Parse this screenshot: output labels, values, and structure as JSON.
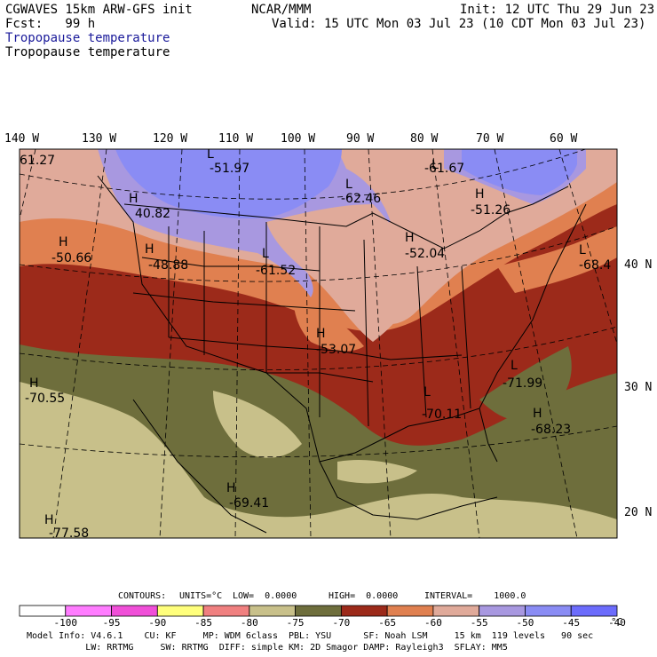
{
  "header": {
    "model": "CGWAVES 15km ARW-GFS init",
    "org": "NCAR/MMM",
    "init": "Init: 12 UTC Thu 29 Jun 23",
    "fcst": "Fcst:   99 h",
    "valid": "Valid: 15 UTC Mon 03 Jul 23 (10 CDT Mon 03 Jul 23)",
    "field_title_blue": "Tropopause temperature",
    "field_title_black": "Tropopause temperature"
  },
  "axes": {
    "longitudes": [
      "140 W",
      "130 W",
      "120 W",
      "110 W",
      "100 W",
      "90 W",
      "80 W",
      "70 W",
      "60 W"
    ],
    "latitudes": [
      "40 N",
      "30 N",
      "20 N"
    ]
  },
  "contour_info": {
    "contours": "CONTOURS:",
    "units": "UNITS=°C",
    "low": "LOW=  0.0000",
    "high": "HIGH=  0.0000",
    "interval": "INTERVAL=    1000.0"
  },
  "colorbar": {
    "colors": [
      "#ffffff",
      "#ff7cff",
      "#f04fd8",
      "#ffff7c",
      "#f08080",
      "#c8c08a",
      "#6e6e3c",
      "#9c2a1a",
      "#e08050",
      "#e0aa9a",
      "#a898e0",
      "#8a8cf4",
      "#6c6cfc"
    ],
    "tick_labels": [
      "-100",
      "-95",
      "-90",
      "-85",
      "-80",
      "-75",
      "-70",
      "-65",
      "-60",
      "-55",
      "-50",
      "-45",
      "-40"
    ],
    "unit_label": "°C"
  },
  "footer": {
    "line1": "Model Info: V4.6.1    CU: KF     MP: WDM 6class  PBL: YSU      SF: Noah LSM     15 km  119 levels   90 sec",
    "line2": "           LW: RRTMG     SW: RRTMG  DIFF: simple KM: 2D Smagor DAMP: Rayleigh3  SFLAY: MM5"
  },
  "map_labels": [
    {
      "name": "low-label-n61-27",
      "text": "61.27"
    },
    {
      "name": "low-marker-n51-97",
      "text": "L"
    },
    {
      "name": "low-value-n51-97",
      "text": "-51.97"
    },
    {
      "name": "low-marker-n62-46",
      "text": "L"
    },
    {
      "name": "low-value-n62-46",
      "text": "-62.46"
    },
    {
      "name": "low-marker-n61-67",
      "text": "L"
    },
    {
      "name": "low-value-n61-67",
      "text": "-61.67"
    },
    {
      "name": "high-marker-n51-26",
      "text": "H"
    },
    {
      "name": "high-value-n51-26",
      "text": "-51.26"
    },
    {
      "name": "high-marker-40-82",
      "text": "H"
    },
    {
      "name": "high-value-40-82",
      "text": "40.82"
    },
    {
      "name": "high-marker-n50-66",
      "text": "H"
    },
    {
      "name": "high-value-n50-66",
      "text": "-50.66"
    },
    {
      "name": "high-marker-n48-88",
      "text": "H"
    },
    {
      "name": "high-value-n48-88",
      "text": "-48.88"
    },
    {
      "name": "low-marker-n61-52",
      "text": "L"
    },
    {
      "name": "low-value-n61-52",
      "text": "-61.52"
    },
    {
      "name": "high-marker-n52-04",
      "text": "H"
    },
    {
      "name": "high-value-n52-04",
      "text": "-52.04"
    },
    {
      "name": "low-marker-n68-4",
      "text": "L"
    },
    {
      "name": "low-value-n68-4",
      "text": "-68.4"
    },
    {
      "name": "high-marker-n53-07",
      "text": "H"
    },
    {
      "name": "high-value-n53-07",
      "text": "-53.07"
    },
    {
      "name": "low-marker-n71-99",
      "text": "L"
    },
    {
      "name": "low-value-n71-99",
      "text": "-71.99"
    },
    {
      "name": "low-marker-n70-11",
      "text": "L"
    },
    {
      "name": "low-value-n70-11",
      "text": "-70.11"
    },
    {
      "name": "high-marker-n68-23",
      "text": "H"
    },
    {
      "name": "high-value-n68-23",
      "text": "-68.23"
    },
    {
      "name": "high-marker-n70-55",
      "text": "H"
    },
    {
      "name": "high-value-n70-55",
      "text": "-70.55"
    },
    {
      "name": "high-marker-n69-41",
      "text": "H"
    },
    {
      "name": "high-value-n69-41",
      "text": "-69.41"
    },
    {
      "name": "high-marker-n77-58",
      "text": "H"
    },
    {
      "name": "high-value-n77-58",
      "text": "-77.58"
    }
  ]
}
